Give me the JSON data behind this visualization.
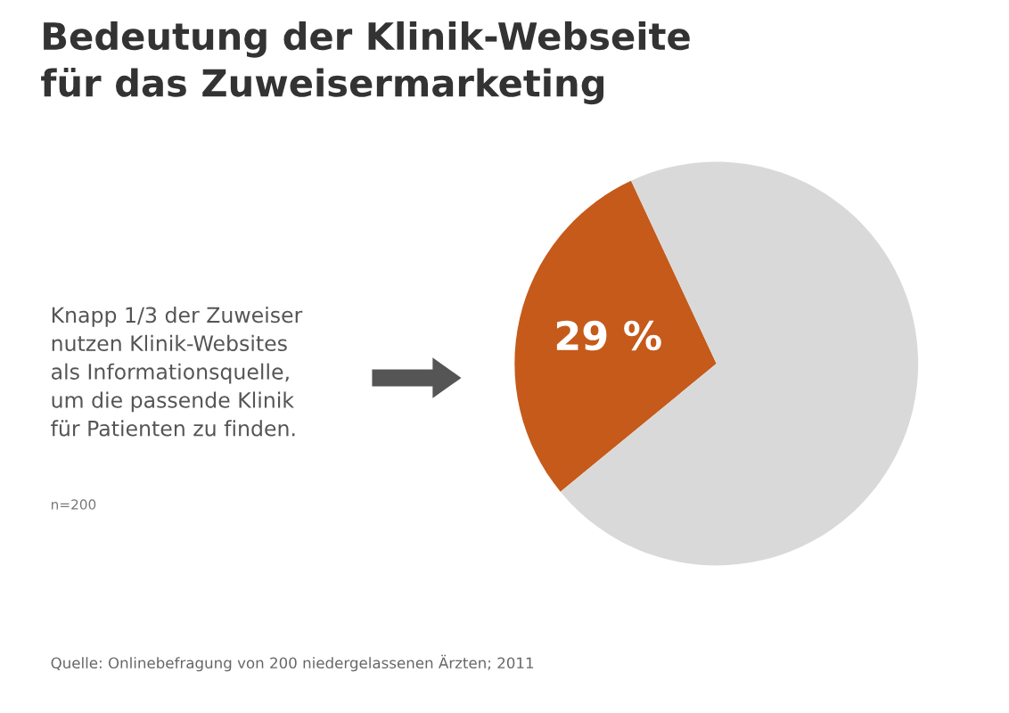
{
  "chart_data": {
    "type": "pie",
    "title": "Bedeutung der Klinik-Webseite\nfür das Zuweisermarketing",
    "categories": [
      null,
      null
    ],
    "values": [
      29,
      71
    ],
    "colors": [
      "#c55a1a",
      "#d9d9d9"
    ],
    "value_labels": [
      "29 %",
      null
    ],
    "annotations": [
      "Knapp 1/3 der Zuweiser\nnutzen Klinik-Websites\nals Informationsquelle,\num die passende Klinik\nfür Patienten zu finden.",
      "n=200",
      "Quelle: Onlinebefragung von 200 niedergelassenen Ärzten; 2011"
    ]
  }
}
